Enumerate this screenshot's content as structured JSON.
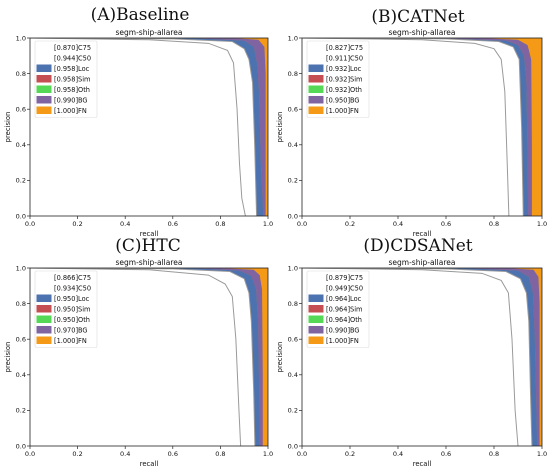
{
  "colors": {
    "C75": "#ffffff",
    "C50": "#ffffff",
    "Loc": "#4c72b0",
    "Sim": "#c44e52",
    "Oth": "#55d855",
    "BG": "#8064a2",
    "FN": "#f59a16",
    "curve": "#9a9a9a"
  },
  "chart_data": [
    {
      "type": "area",
      "panel_title": "(A)Baseline",
      "title": "segm-ship-allarea",
      "xlabel": "recall",
      "ylabel": "precision",
      "xlim": [
        0,
        1
      ],
      "ylim": [
        0,
        1
      ],
      "x_ticks": [
        "0.0",
        "0.2",
        "0.4",
        "0.6",
        "0.8",
        "1.0"
      ],
      "y_ticks": [
        "0.0",
        "0.2",
        "0.4",
        "0.6",
        "0.8",
        "1.0"
      ],
      "legend_placement": "upper-left",
      "series": [
        {
          "name": "[0.870]C75",
          "key": "C75",
          "x": [
            0,
            0.5,
            0.75,
            0.83,
            0.855,
            0.87,
            0.88,
            0.89,
            0.905
          ],
          "y": [
            1.0,
            0.99,
            0.97,
            0.93,
            0.86,
            0.6,
            0.3,
            0.1,
            0.0
          ]
        },
        {
          "name": "[0.944]C50",
          "key": "C50",
          "x": [
            0,
            0.6,
            0.85,
            0.9,
            0.92,
            0.935,
            0.944,
            0.952
          ],
          "y": [
            1.0,
            0.995,
            0.98,
            0.94,
            0.88,
            0.75,
            0.4,
            0.0
          ]
        },
        {
          "name": "[0.958]Loc",
          "key": "Loc",
          "x": [
            0,
            0.7,
            0.9,
            0.94,
            0.955,
            0.962,
            0.97,
            0.98
          ],
          "y": [
            1.0,
            0.998,
            0.985,
            0.95,
            0.85,
            0.7,
            0.3,
            0.0
          ]
        },
        {
          "name": "[0.958]Sim",
          "key": "Sim",
          "x": [
            0,
            0.7,
            0.9,
            0.94,
            0.955,
            0.962,
            0.97,
            0.98
          ],
          "y": [
            1.0,
            0.998,
            0.985,
            0.95,
            0.85,
            0.7,
            0.3,
            0.0
          ]
        },
        {
          "name": "[0.958]Oth",
          "key": "Oth",
          "x": [
            0,
            0.7,
            0.9,
            0.94,
            0.955,
            0.962,
            0.97,
            0.98
          ],
          "y": [
            1.0,
            0.998,
            0.985,
            0.95,
            0.85,
            0.7,
            0.3,
            0.0
          ]
        },
        {
          "name": "[0.990]BG",
          "key": "BG",
          "x": [
            0,
            0.85,
            0.96,
            0.985,
            0.99,
            0.99
          ],
          "y": [
            1.0,
            1.0,
            0.99,
            0.95,
            0.8,
            0.0
          ]
        },
        {
          "name": "[1.000]FN",
          "key": "FN",
          "x": [
            0,
            1.0,
            1.0
          ],
          "y": [
            1.0,
            1.0,
            0.0
          ]
        }
      ]
    },
    {
      "type": "area",
      "panel_title": "(B)CATNet",
      "title": "segm-ship-allarea",
      "xlabel": "recall",
      "ylabel": "precision",
      "xlim": [
        0,
        1
      ],
      "ylim": [
        0,
        1
      ],
      "x_ticks": [
        "0.0",
        "0.2",
        "0.4",
        "0.6",
        "0.8",
        "1.0"
      ],
      "y_ticks": [
        "0.0",
        "0.2",
        "0.4",
        "0.6",
        "0.8",
        "1.0"
      ],
      "legend_placement": "upper-left",
      "series": [
        {
          "name": "[0.827]C75",
          "key": "C75",
          "x": [
            0,
            0.5,
            0.72,
            0.8,
            0.83,
            0.845,
            0.855,
            0.862
          ],
          "y": [
            1.0,
            0.99,
            0.97,
            0.94,
            0.88,
            0.7,
            0.3,
            0.0
          ]
        },
        {
          "name": "[0.911]C50",
          "key": "C50",
          "x": [
            0,
            0.6,
            0.82,
            0.88,
            0.905,
            0.915,
            0.922
          ],
          "y": [
            1.0,
            0.995,
            0.98,
            0.95,
            0.88,
            0.5,
            0.0
          ]
        },
        {
          "name": "[0.932]Loc",
          "key": "Loc",
          "x": [
            0,
            0.6,
            0.85,
            0.9,
            0.925,
            0.935,
            0.94,
            0.942
          ],
          "y": [
            1.0,
            0.997,
            0.985,
            0.96,
            0.9,
            0.75,
            0.3,
            0.0
          ]
        },
        {
          "name": "[0.932]Sim",
          "key": "Sim",
          "x": [
            0,
            0.6,
            0.85,
            0.9,
            0.925,
            0.935,
            0.94,
            0.942
          ],
          "y": [
            1.0,
            0.997,
            0.985,
            0.96,
            0.9,
            0.75,
            0.3,
            0.0
          ]
        },
        {
          "name": "[0.932]Oth",
          "key": "Oth",
          "x": [
            0,
            0.6,
            0.85,
            0.9,
            0.925,
            0.935,
            0.94,
            0.942
          ],
          "y": [
            1.0,
            0.997,
            0.985,
            0.96,
            0.9,
            0.75,
            0.3,
            0.0
          ]
        },
        {
          "name": "[0.950]BG",
          "key": "BG",
          "x": [
            0,
            0.75,
            0.9,
            0.94,
            0.955,
            0.958,
            0.958
          ],
          "y": [
            1.0,
            1.0,
            0.99,
            0.96,
            0.88,
            0.4,
            0.0
          ]
        },
        {
          "name": "[1.000]FN",
          "key": "FN",
          "x": [
            0,
            1.0,
            1.0
          ],
          "y": [
            1.0,
            1.0,
            0.0
          ]
        }
      ]
    },
    {
      "type": "area",
      "panel_title": "(C)HTC",
      "title": "segm-ship-allarea",
      "xlabel": "recall",
      "ylabel": "precision",
      "xlim": [
        0,
        1
      ],
      "ylim": [
        0,
        1
      ],
      "x_ticks": [
        "0.0",
        "0.2",
        "0.4",
        "0.6",
        "0.8",
        "1.0"
      ],
      "y_ticks": [
        "0.0",
        "0.2",
        "0.4",
        "0.6",
        "0.8",
        "1.0"
      ],
      "legend_placement": "upper-left",
      "series": [
        {
          "name": "[0.866]C75",
          "key": "C75",
          "x": [
            0,
            0.5,
            0.75,
            0.82,
            0.85,
            0.865,
            0.878,
            0.885
          ],
          "y": [
            1.0,
            0.99,
            0.96,
            0.91,
            0.84,
            0.6,
            0.2,
            0.0
          ]
        },
        {
          "name": "[0.934]C50",
          "key": "C50",
          "x": [
            0,
            0.6,
            0.84,
            0.9,
            0.92,
            0.93,
            0.94,
            0.945
          ],
          "y": [
            1.0,
            0.995,
            0.98,
            0.94,
            0.86,
            0.7,
            0.3,
            0.0
          ]
        },
        {
          "name": "[0.950]Loc",
          "key": "Loc",
          "x": [
            0,
            0.7,
            0.88,
            0.93,
            0.95,
            0.958,
            0.963,
            0.965
          ],
          "y": [
            1.0,
            0.998,
            0.985,
            0.955,
            0.88,
            0.7,
            0.3,
            0.0
          ]
        },
        {
          "name": "[0.950]Sim",
          "key": "Sim",
          "x": [
            0,
            0.7,
            0.88,
            0.93,
            0.95,
            0.958,
            0.963,
            0.965
          ],
          "y": [
            1.0,
            0.998,
            0.985,
            0.955,
            0.88,
            0.7,
            0.3,
            0.0
          ]
        },
        {
          "name": "[0.950]Oth",
          "key": "Oth",
          "x": [
            0,
            0.7,
            0.88,
            0.93,
            0.95,
            0.958,
            0.963,
            0.965
          ],
          "y": [
            1.0,
            0.998,
            0.985,
            0.955,
            0.88,
            0.7,
            0.3,
            0.0
          ]
        },
        {
          "name": "[0.970]BG",
          "key": "BG",
          "x": [
            0,
            0.8,
            0.94,
            0.965,
            0.975,
            0.978,
            0.978
          ],
          "y": [
            1.0,
            1.0,
            0.99,
            0.96,
            0.88,
            0.4,
            0.0
          ]
        },
        {
          "name": "[1.000]FN",
          "key": "FN",
          "x": [
            0,
            1.0,
            1.0
          ],
          "y": [
            1.0,
            1.0,
            0.0
          ]
        }
      ]
    },
    {
      "type": "area",
      "panel_title": "(D)CDSANet",
      "title": "segm-ship-allarea",
      "xlabel": "recall",
      "ylabel": "precision",
      "xlim": [
        0,
        1
      ],
      "ylim": [
        0,
        1
      ],
      "x_ticks": [
        "0.0",
        "0.2",
        "0.4",
        "0.6",
        "0.8",
        "1.0"
      ],
      "y_ticks": [
        "0.0",
        "0.2",
        "0.4",
        "0.6",
        "0.8",
        "1.0"
      ],
      "legend_placement": "upper-left",
      "series": [
        {
          "name": "[0.879]C75",
          "key": "C75",
          "x": [
            0,
            0.5,
            0.75,
            0.83,
            0.86,
            0.875,
            0.888,
            0.9
          ],
          "y": [
            1.0,
            0.99,
            0.97,
            0.93,
            0.86,
            0.6,
            0.2,
            0.0
          ]
        },
        {
          "name": "[0.949]C50",
          "key": "C50",
          "x": [
            0,
            0.6,
            0.85,
            0.91,
            0.935,
            0.945,
            0.952,
            0.958
          ],
          "y": [
            1.0,
            0.995,
            0.98,
            0.94,
            0.86,
            0.7,
            0.3,
            0.0
          ]
        },
        {
          "name": "[0.964]Loc",
          "key": "Loc",
          "x": [
            0,
            0.7,
            0.9,
            0.945,
            0.962,
            0.97,
            0.975,
            0.98
          ],
          "y": [
            1.0,
            0.998,
            0.985,
            0.95,
            0.86,
            0.6,
            0.3,
            0.0
          ]
        },
        {
          "name": "[0.964]Sim",
          "key": "Sim",
          "x": [
            0,
            0.7,
            0.9,
            0.945,
            0.962,
            0.97,
            0.975,
            0.98
          ],
          "y": [
            1.0,
            0.998,
            0.985,
            0.95,
            0.86,
            0.6,
            0.3,
            0.0
          ]
        },
        {
          "name": "[0.964]Oth",
          "key": "Oth",
          "x": [
            0,
            0.7,
            0.9,
            0.945,
            0.962,
            0.97,
            0.975,
            0.98
          ],
          "y": [
            1.0,
            0.998,
            0.985,
            0.95,
            0.86,
            0.6,
            0.3,
            0.0
          ]
        },
        {
          "name": "[0.990]BG",
          "key": "BG",
          "x": [
            0,
            0.85,
            0.965,
            0.985,
            0.99,
            0.99
          ],
          "y": [
            1.0,
            1.0,
            0.99,
            0.95,
            0.8,
            0.0
          ]
        },
        {
          "name": "[1.000]FN",
          "key": "FN",
          "x": [
            0,
            1.0,
            1.0
          ],
          "y": [
            1.0,
            1.0,
            0.0
          ]
        }
      ]
    }
  ]
}
